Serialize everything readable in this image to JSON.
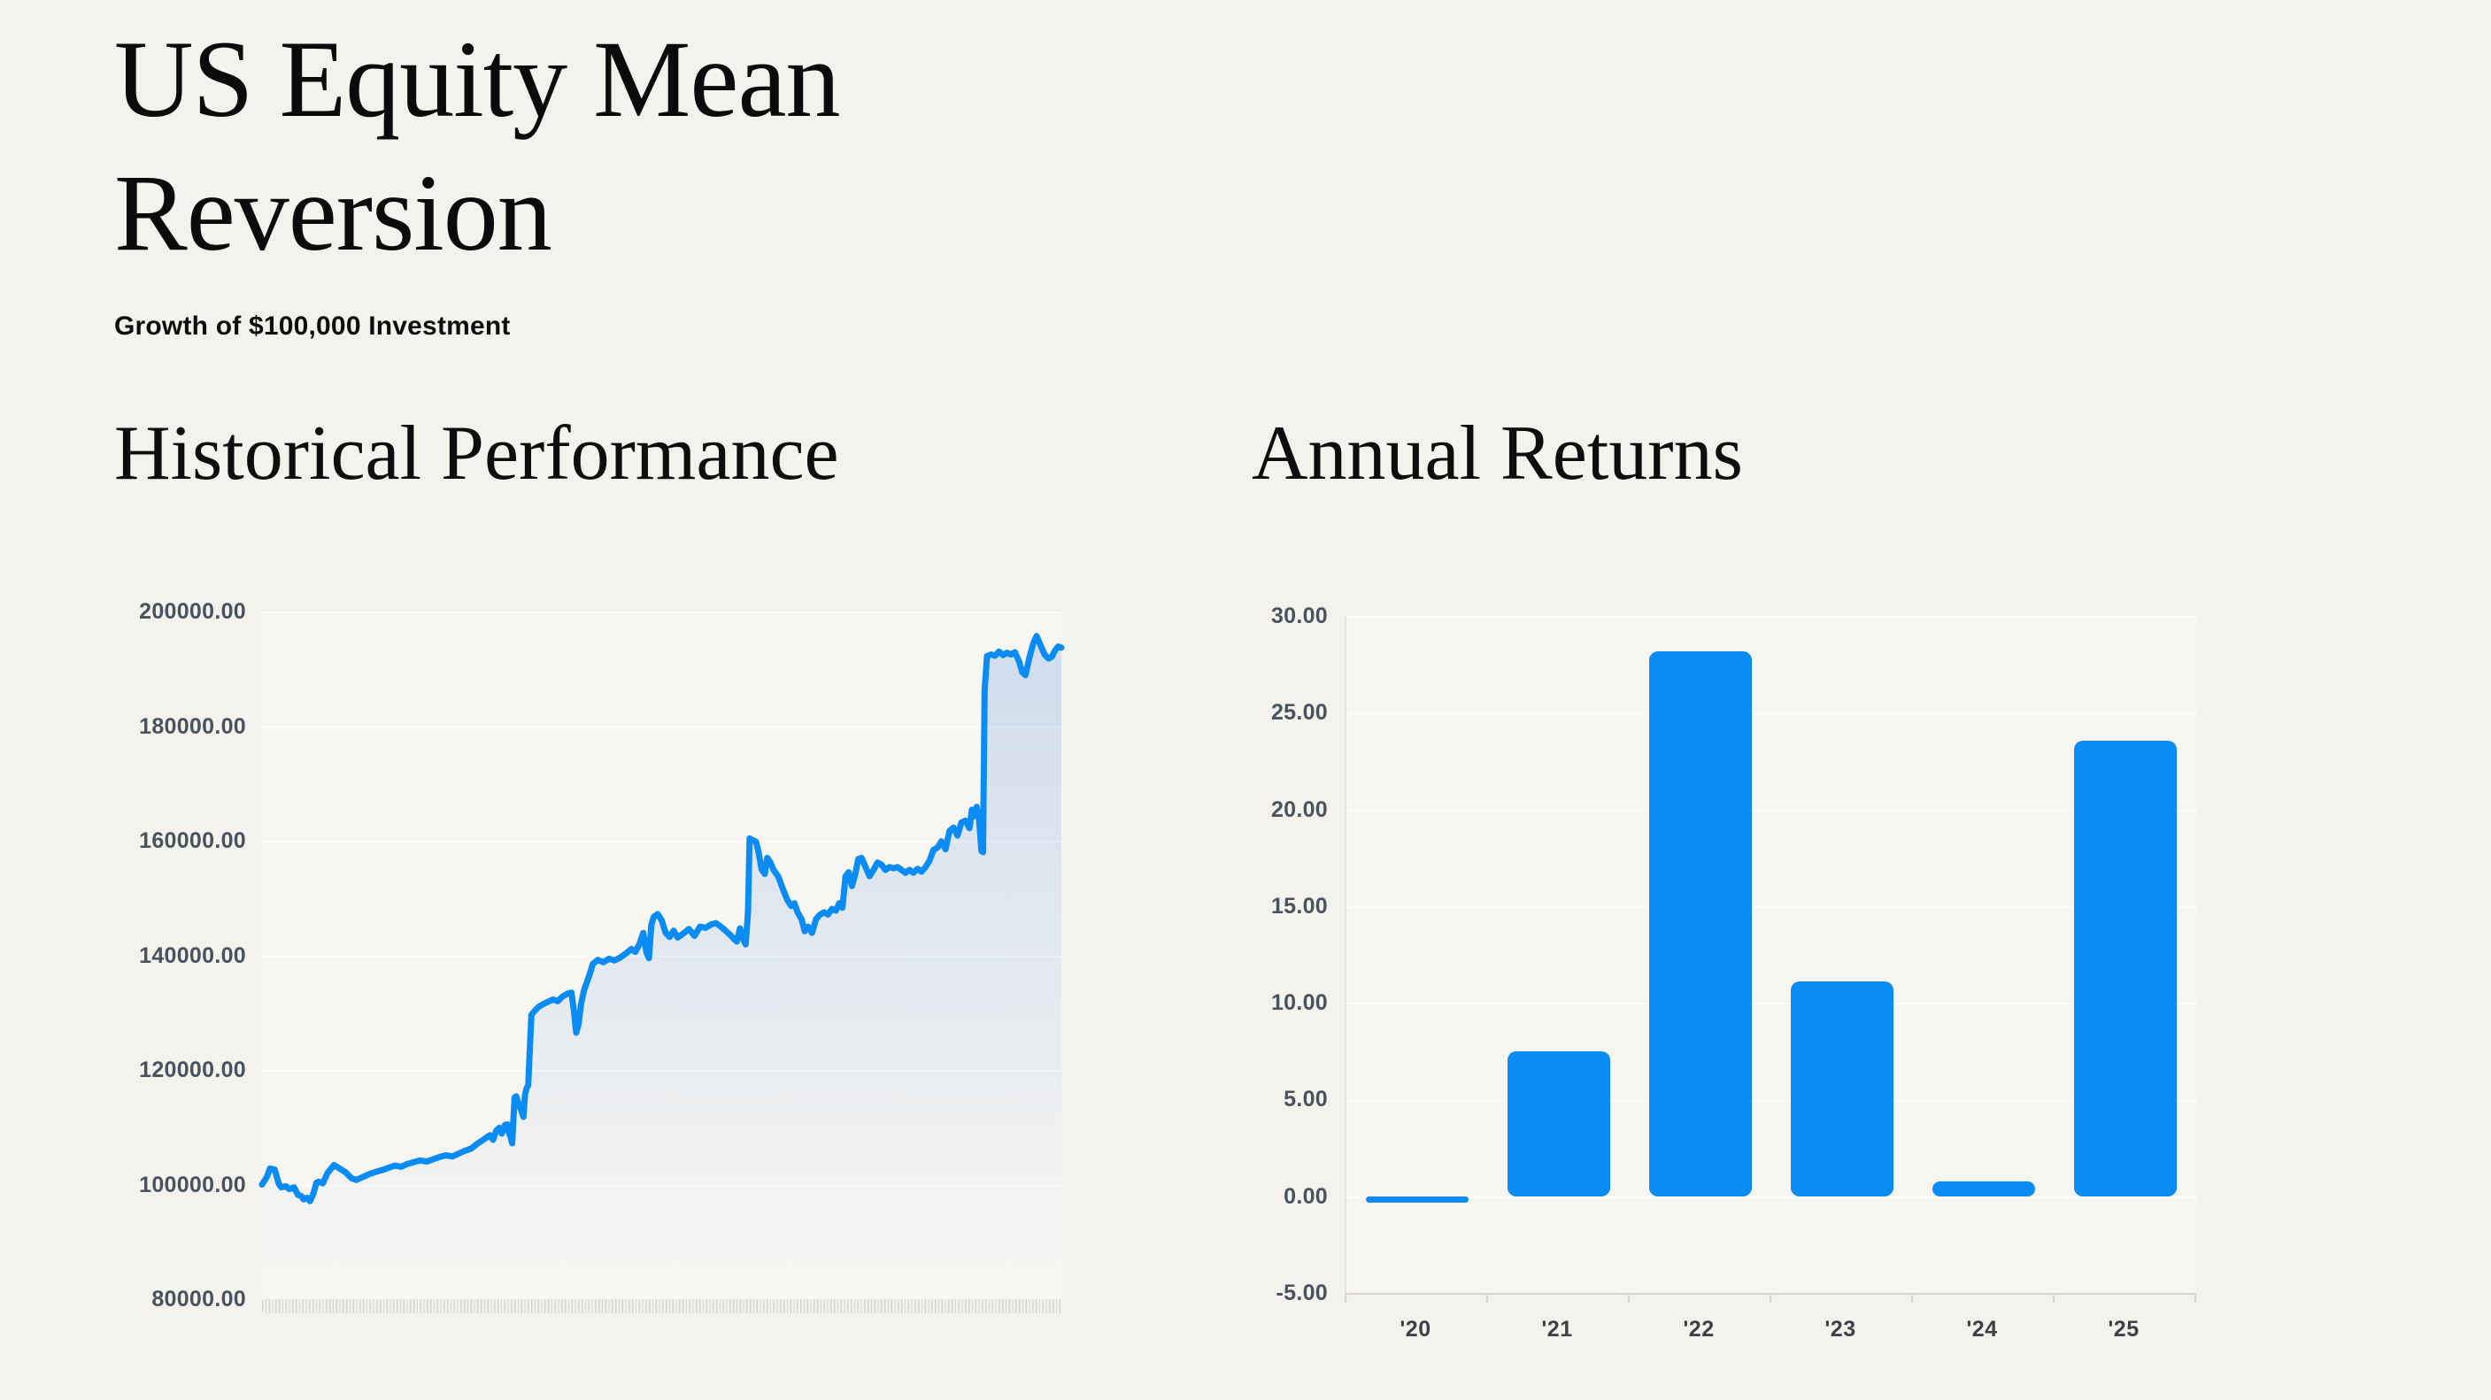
{
  "header": {
    "title_line1": "US Equity Mean",
    "title_line2": "Reversion",
    "subtitle": "Growth of $100,000 Investment"
  },
  "colors": {
    "accent_blue": "#0b8cf4",
    "area_fill_blue": "rgba(64,130,220,0.22)",
    "page_bg": "#f4f2ed",
    "plot_bg": "#f8f6f2",
    "gridline": "rgba(255,255,255,0.85)",
    "axis_label": "#49525f",
    "x_label": "#3c4147",
    "tick_mark": "#d8d6d1"
  },
  "chart_data": [
    {
      "id": "historical_performance",
      "type": "area",
      "title": "Historical Performance",
      "y_ticks": [
        "200000.00",
        "180000.00",
        "160000.00",
        "140000.00",
        "120000.00",
        "100000.00",
        "80000.00"
      ],
      "ylim": [
        80000,
        200000
      ],
      "x_axis_note": "dense unlabeled tick marks along baseline",
      "grid": true,
      "legend": "none",
      "points": [
        [
          0.0,
          100000
        ],
        [
          0.006,
          101300
        ],
        [
          0.01,
          102800
        ],
        [
          0.016,
          102600
        ],
        [
          0.021,
          100100
        ],
        [
          0.024,
          99500
        ],
        [
          0.03,
          99700
        ],
        [
          0.034,
          99200
        ],
        [
          0.04,
          99500
        ],
        [
          0.045,
          98200
        ],
        [
          0.049,
          98000
        ],
        [
          0.052,
          97400
        ],
        [
          0.056,
          97700
        ],
        [
          0.06,
          97100
        ],
        [
          0.064,
          98300
        ],
        [
          0.068,
          100300
        ],
        [
          0.071,
          100500
        ],
        [
          0.076,
          100200
        ],
        [
          0.082,
          102000
        ],
        [
          0.09,
          103400
        ],
        [
          0.097,
          102800
        ],
        [
          0.104,
          102200
        ],
        [
          0.112,
          101100
        ],
        [
          0.118,
          100800
        ],
        [
          0.126,
          101300
        ],
        [
          0.134,
          101800
        ],
        [
          0.142,
          102200
        ],
        [
          0.15,
          102500
        ],
        [
          0.158,
          102900
        ],
        [
          0.166,
          103300
        ],
        [
          0.174,
          103100
        ],
        [
          0.182,
          103600
        ],
        [
          0.19,
          103900
        ],
        [
          0.198,
          104200
        ],
        [
          0.206,
          104000
        ],
        [
          0.214,
          104400
        ],
        [
          0.222,
          104800
        ],
        [
          0.23,
          105100
        ],
        [
          0.238,
          104900
        ],
        [
          0.246,
          105400
        ],
        [
          0.254,
          105900
        ],
        [
          0.262,
          106300
        ],
        [
          0.27,
          107200
        ],
        [
          0.278,
          107900
        ],
        [
          0.285,
          108600
        ],
        [
          0.289,
          107800
        ],
        [
          0.293,
          109400
        ],
        [
          0.297,
          109900
        ],
        [
          0.3,
          108900
        ],
        [
          0.304,
          110400
        ],
        [
          0.307,
          110500
        ],
        [
          0.309,
          109000
        ],
        [
          0.311,
          108300
        ],
        [
          0.313,
          107200
        ],
        [
          0.316,
          115200
        ],
        [
          0.318,
          115400
        ],
        [
          0.321,
          114100
        ],
        [
          0.324,
          113000
        ],
        [
          0.327,
          111800
        ],
        [
          0.329,
          115700
        ],
        [
          0.331,
          116800
        ],
        [
          0.333,
          117300
        ],
        [
          0.335,
          123500
        ],
        [
          0.337,
          129600
        ],
        [
          0.341,
          130300
        ],
        [
          0.346,
          131000
        ],
        [
          0.352,
          131500
        ],
        [
          0.358,
          131900
        ],
        [
          0.364,
          132300
        ],
        [
          0.37,
          132000
        ],
        [
          0.376,
          132800
        ],
        [
          0.382,
          133300
        ],
        [
          0.387,
          133500
        ],
        [
          0.39,
          130500
        ],
        [
          0.393,
          126500
        ],
        [
          0.396,
          128000
        ],
        [
          0.399,
          131400
        ],
        [
          0.403,
          134000
        ],
        [
          0.409,
          136300
        ],
        [
          0.414,
          138500
        ],
        [
          0.42,
          139200
        ],
        [
          0.427,
          138800
        ],
        [
          0.434,
          139400
        ],
        [
          0.441,
          139100
        ],
        [
          0.448,
          139600
        ],
        [
          0.455,
          140300
        ],
        [
          0.462,
          141100
        ],
        [
          0.467,
          140600
        ],
        [
          0.472,
          141900
        ],
        [
          0.477,
          143900
        ],
        [
          0.481,
          140500
        ],
        [
          0.484,
          139500
        ],
        [
          0.487,
          145300
        ],
        [
          0.49,
          146700
        ],
        [
          0.495,
          147200
        ],
        [
          0.5,
          146100
        ],
        [
          0.505,
          143900
        ],
        [
          0.51,
          143200
        ],
        [
          0.515,
          144300
        ],
        [
          0.52,
          143100
        ],
        [
          0.527,
          143800
        ],
        [
          0.534,
          144600
        ],
        [
          0.541,
          143400
        ],
        [
          0.548,
          145000
        ],
        [
          0.555,
          144800
        ],
        [
          0.562,
          145400
        ],
        [
          0.568,
          145600
        ],
        [
          0.574,
          145000
        ],
        [
          0.58,
          144300
        ],
        [
          0.586,
          143500
        ],
        [
          0.59,
          142900
        ],
        [
          0.594,
          142400
        ],
        [
          0.598,
          144700
        ],
        [
          0.602,
          142800
        ],
        [
          0.605,
          141900
        ],
        [
          0.608,
          147500
        ],
        [
          0.61,
          160400
        ],
        [
          0.614,
          160100
        ],
        [
          0.618,
          159800
        ],
        [
          0.621,
          158100
        ],
        [
          0.625,
          155000
        ],
        [
          0.629,
          154200
        ],
        [
          0.632,
          157000
        ],
        [
          0.636,
          156200
        ],
        [
          0.64,
          154900
        ],
        [
          0.646,
          153700
        ],
        [
          0.652,
          151400
        ],
        [
          0.657,
          149700
        ],
        [
          0.662,
          148600
        ],
        [
          0.666,
          149100
        ],
        [
          0.67,
          147500
        ],
        [
          0.675,
          146300
        ],
        [
          0.679,
          144200
        ],
        [
          0.683,
          145000
        ],
        [
          0.688,
          143900
        ],
        [
          0.693,
          146300
        ],
        [
          0.698,
          147100
        ],
        [
          0.703,
          147500
        ],
        [
          0.708,
          147100
        ],
        [
          0.713,
          148100
        ],
        [
          0.718,
          147800
        ],
        [
          0.722,
          149100
        ],
        [
          0.726,
          148300
        ],
        [
          0.73,
          153800
        ],
        [
          0.734,
          154500
        ],
        [
          0.738,
          152100
        ],
        [
          0.742,
          154100
        ],
        [
          0.746,
          156800
        ],
        [
          0.75,
          157000
        ],
        [
          0.755,
          155400
        ],
        [
          0.76,
          153800
        ],
        [
          0.765,
          154900
        ],
        [
          0.77,
          156200
        ],
        [
          0.775,
          155800
        ],
        [
          0.78,
          154900
        ],
        [
          0.785,
          155400
        ],
        [
          0.79,
          155200
        ],
        [
          0.795,
          155400
        ],
        [
          0.8,
          154900
        ],
        [
          0.805,
          154400
        ],
        [
          0.81,
          154900
        ],
        [
          0.815,
          154400
        ],
        [
          0.82,
          155100
        ],
        [
          0.825,
          154600
        ],
        [
          0.83,
          155400
        ],
        [
          0.835,
          156500
        ],
        [
          0.84,
          158400
        ],
        [
          0.845,
          158800
        ],
        [
          0.85,
          159900
        ],
        [
          0.855,
          158500
        ],
        [
          0.86,
          161700
        ],
        [
          0.865,
          162300
        ],
        [
          0.87,
          160900
        ],
        [
          0.875,
          163200
        ],
        [
          0.88,
          163500
        ],
        [
          0.885,
          162200
        ],
        [
          0.888,
          165400
        ],
        [
          0.891,
          164300
        ],
        [
          0.894,
          165900
        ],
        [
          0.897,
          163800
        ],
        [
          0.9,
          158200
        ],
        [
          0.902,
          158000
        ],
        [
          0.904,
          186300
        ],
        [
          0.907,
          192200
        ],
        [
          0.912,
          192500
        ],
        [
          0.917,
          192300
        ],
        [
          0.922,
          193000
        ],
        [
          0.927,
          192400
        ],
        [
          0.932,
          192800
        ],
        [
          0.937,
          192500
        ],
        [
          0.942,
          192900
        ],
        [
          0.947,
          191300
        ],
        [
          0.951,
          189400
        ],
        [
          0.955,
          188900
        ],
        [
          0.96,
          192000
        ],
        [
          0.965,
          194500
        ],
        [
          0.969,
          195700
        ],
        [
          0.974,
          194100
        ],
        [
          0.979,
          192500
        ],
        [
          0.984,
          191800
        ],
        [
          0.988,
          192100
        ],
        [
          0.992,
          193200
        ],
        [
          0.996,
          193900
        ],
        [
          1.0,
          193700
        ]
      ]
    },
    {
      "id": "annual_returns",
      "type": "bar",
      "title": "Annual Returns",
      "categories": [
        "'20",
        "'21",
        "'22",
        "'23",
        "'24",
        "'25"
      ],
      "values": [
        -0.35,
        7.49,
        28.18,
        11.1,
        0.78,
        23.56
      ],
      "y_ticks": [
        "30.00",
        "25.00",
        "20.00",
        "15.00",
        "10.00",
        "5.00",
        "0.00",
        "-5.00"
      ],
      "ylim": [
        -5,
        30
      ],
      "grid": true,
      "legend": "none"
    }
  ]
}
